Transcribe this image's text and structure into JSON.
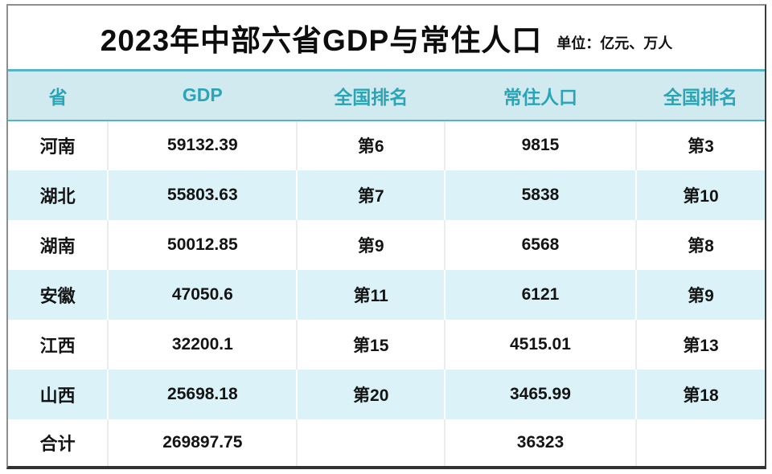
{
  "title": {
    "text": "2023年中部六省GDP与常住人口",
    "unit": "单位：亿元、万人"
  },
  "colors": {
    "header_bg": "#d0eaef",
    "header_text": "#2ba4b6",
    "header_border": "#58b4c4",
    "alt_row_bg": "#daf2f8",
    "body_text": "#141414",
    "card_border_dark": "#323232"
  },
  "table": {
    "headers": [
      "省",
      "GDP",
      "全国排名",
      "常住人口",
      "全国排名"
    ],
    "rows": [
      {
        "province": "河南",
        "gdp": "59132.39",
        "gdp_rank": "第6",
        "population": "9815",
        "pop_rank": "第3"
      },
      {
        "province": "湖北",
        "gdp": "55803.63",
        "gdp_rank": "第7",
        "population": "5838",
        "pop_rank": "第10"
      },
      {
        "province": "湖南",
        "gdp": "50012.85",
        "gdp_rank": "第9",
        "population": "6568",
        "pop_rank": "第8"
      },
      {
        "province": "安徽",
        "gdp": "47050.6",
        "gdp_rank": "第11",
        "population": "6121",
        "pop_rank": "第9"
      },
      {
        "province": "江西",
        "gdp": "32200.1",
        "gdp_rank": "第15",
        "population": "4515.01",
        "pop_rank": "第13"
      },
      {
        "province": "山西",
        "gdp": "25698.18",
        "gdp_rank": "第20",
        "population": "3465.99",
        "pop_rank": "第18"
      },
      {
        "province": "合计",
        "gdp": "269897.75",
        "gdp_rank": "",
        "population": "36323",
        "pop_rank": ""
      }
    ]
  },
  "chart_data": {
    "type": "table",
    "title": "2023年中部六省GDP与常住人口",
    "units": "亿元、万人",
    "columns": [
      "省",
      "GDP",
      "全国排名",
      "常住人口",
      "全国排名"
    ],
    "rows": [
      [
        "河南",
        59132.39,
        "第6",
        9815,
        "第3"
      ],
      [
        "湖北",
        55803.63,
        "第7",
        5838,
        "第10"
      ],
      [
        "湖南",
        50012.85,
        "第9",
        6568,
        "第8"
      ],
      [
        "安徽",
        47050.6,
        "第11",
        6121,
        "第9"
      ],
      [
        "江西",
        32200.1,
        "第15",
        4515.01,
        "第13"
      ],
      [
        "山西",
        25698.18,
        "第20",
        3465.99,
        "第18"
      ],
      [
        "合计",
        269897.75,
        "",
        36323,
        ""
      ]
    ]
  }
}
